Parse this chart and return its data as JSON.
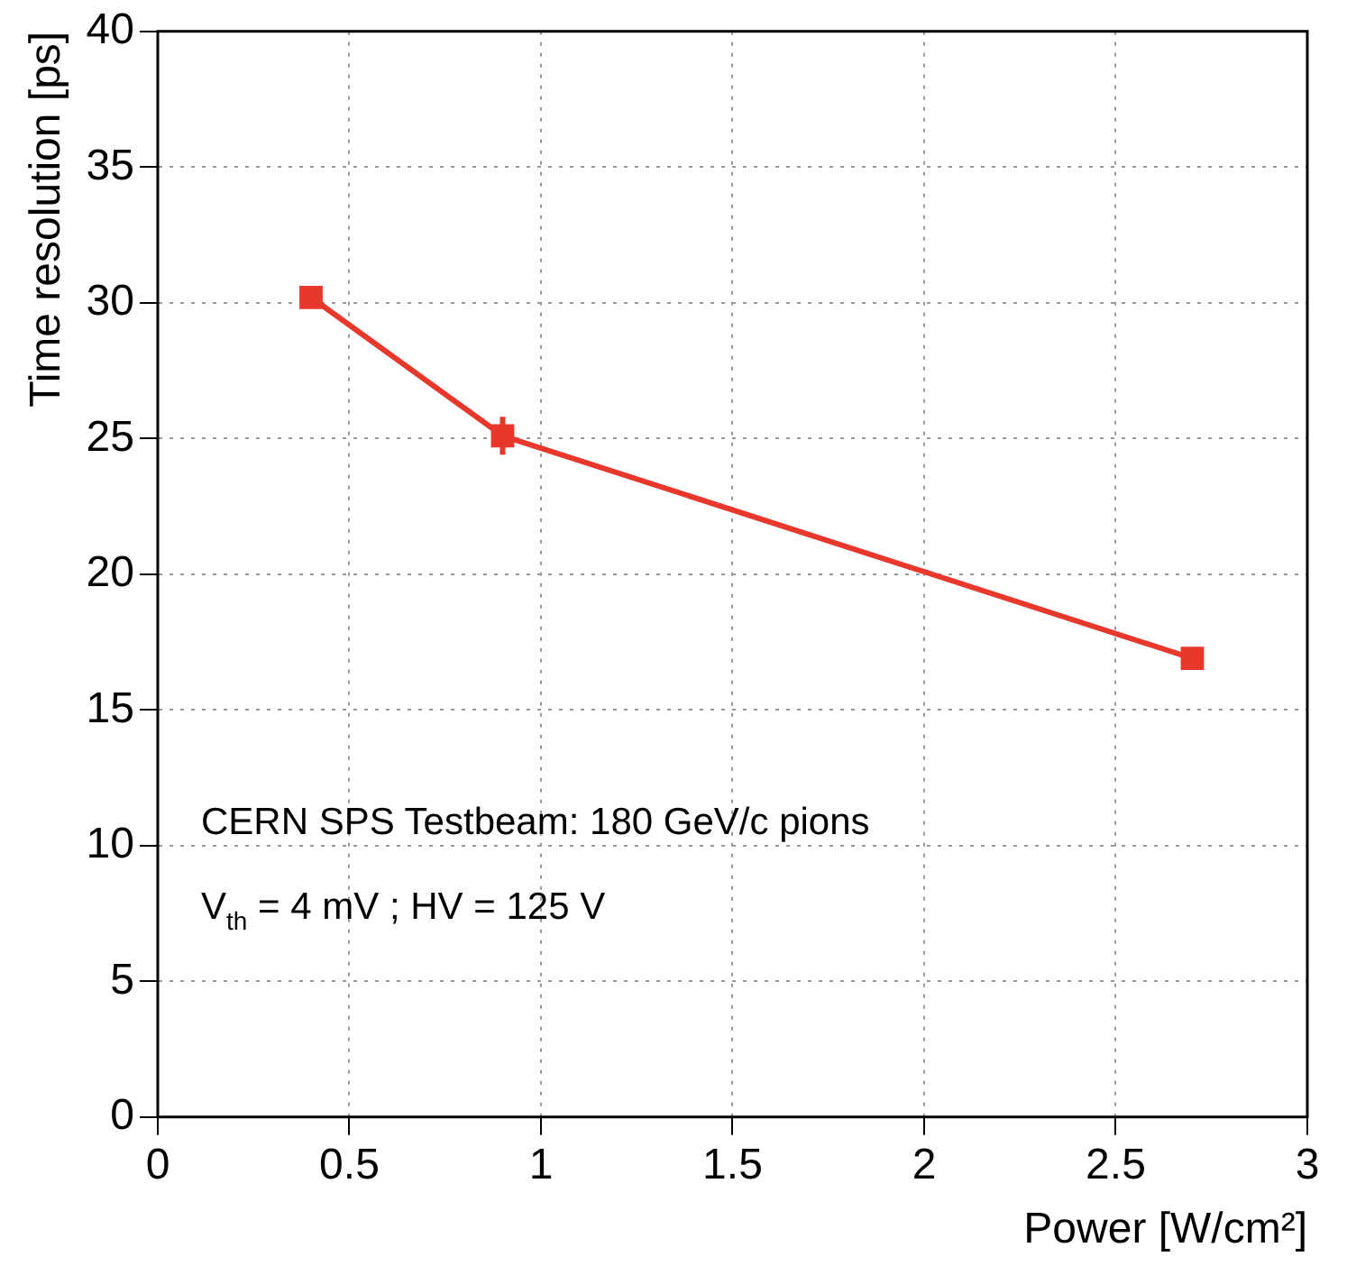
{
  "chart_data": {
    "type": "line",
    "xlabel": "Power [W/cm²]",
    "ylabel": "Time resolution [ps]",
    "x": [
      0.4,
      0.9,
      2.7
    ],
    "series": [
      {
        "color": "#e8372b",
        "values": [
          30.2,
          25.1,
          16.9
        ],
        "errors": [
          0.3,
          0.7,
          0.4
        ]
      }
    ],
    "xlim": [
      0,
      3
    ],
    "xticks": [
      0,
      0.5,
      1,
      1.5,
      2,
      2.5,
      3
    ],
    "ylim": [
      0,
      40
    ],
    "yticks": [
      0,
      5,
      10,
      15,
      20,
      25,
      30,
      35,
      40
    ],
    "grid": true,
    "legend": false,
    "marker": "square",
    "line_style": "solid",
    "annotations": [
      "CERN SPS Testbeam: 180 GeV/c pions",
      "V$_{th}$ = 4 mV ; HV = 125 V"
    ]
  }
}
